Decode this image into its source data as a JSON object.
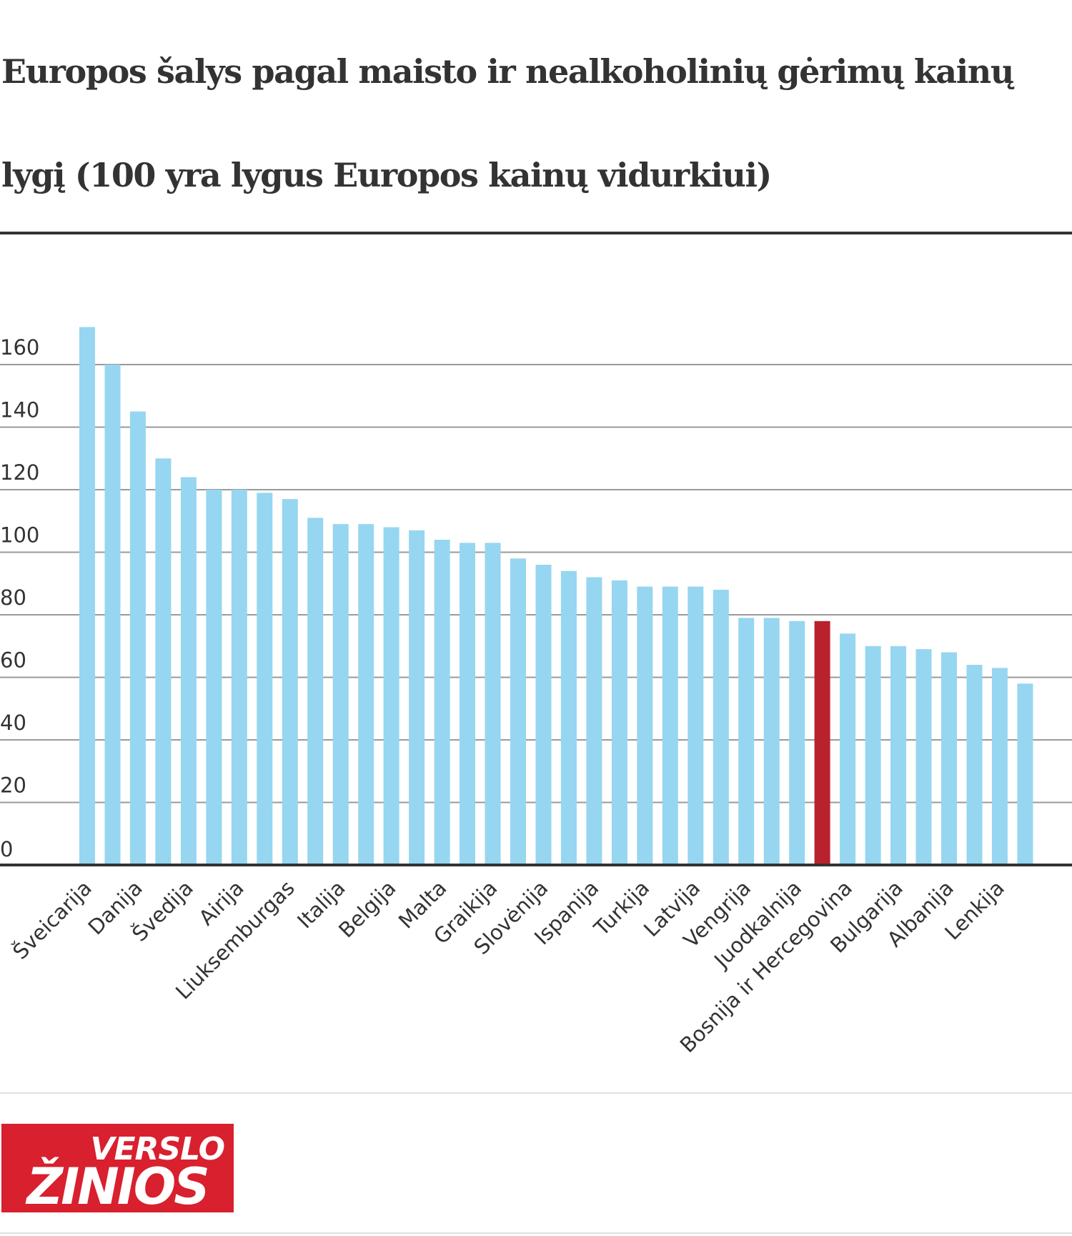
{
  "chart_data": {
    "type": "bar",
    "title": "Europos šalys pagal maisto ir nealkoholinių gėrimų kainų lygį (100 yra lygus Europos kainų vidurkiui)",
    "xlabel": "",
    "ylabel": "",
    "ylim": [
      0,
      175
    ],
    "yticks": [
      0,
      20,
      40,
      60,
      80,
      100,
      120,
      140,
      160
    ],
    "grid": true,
    "legend": "none",
    "bar_color": "#96d6f0",
    "highlight_color": "#b9222c",
    "categories": [
      "Šveicarija",
      "",
      "Danija",
      "",
      "Švedija",
      "",
      "Airija",
      "",
      "Liuksemburgas",
      "",
      "Italija",
      "",
      "Belgija",
      "",
      "Malta",
      "",
      "Graikija",
      "",
      "Slovėnija",
      "",
      "Ispanija",
      "",
      "Turkija",
      "",
      "Latvija",
      "",
      "Vengrija",
      "",
      "Juodkalnija",
      "",
      "Bosnija ir Hercegovina",
      "",
      "Bulgarija",
      "",
      "Albanija",
      "",
      "Lenkija",
      ""
    ],
    "values": [
      172,
      160,
      145,
      130,
      124,
      120,
      120,
      119,
      117,
      111,
      109,
      109,
      108,
      107,
      104,
      103,
      103,
      98,
      96,
      94,
      92,
      91,
      89,
      89,
      89,
      88,
      79,
      79,
      78,
      78,
      74,
      70,
      70,
      69,
      68,
      64,
      63,
      58
    ],
    "highlight_index": 29
  },
  "logo": {
    "line1": "VERSLO",
    "line2": "ŽINIOS"
  }
}
